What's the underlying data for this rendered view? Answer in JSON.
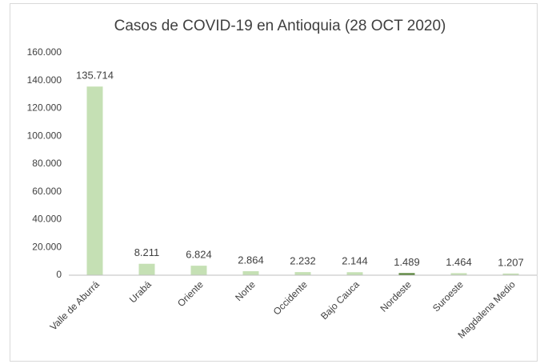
{
  "chart_data": {
    "type": "bar",
    "title": "Casos de COVID-19 en Antioquia (28 OCT 2020)",
    "categories": [
      "Valle de Aburrá",
      "Urabá",
      "Oriente",
      "Norte",
      "Occidente",
      "Bajo Cauca",
      "Nordeste",
      "Suroeste",
      "Magdalena Medio"
    ],
    "values": [
      135714,
      8211,
      6824,
      2864,
      2232,
      2144,
      1489,
      1464,
      1207
    ],
    "value_labels": [
      "135.714",
      "8.211",
      "6.824",
      "2.864",
      "2.232",
      "2.144",
      "1.489",
      "1.464",
      "1.207"
    ],
    "colors": [
      "#c5e0b4",
      "#c5e0b4",
      "#c5e0b4",
      "#c5e0b4",
      "#c5e0b4",
      "#c5e0b4",
      "#548235",
      "#c5e0b4",
      "#c5e0b4"
    ],
    "ylim": [
      0,
      160000
    ],
    "yticks": [
      0,
      {
        "value": 20000,
        "label": "20.000"
      },
      {
        "value": 40000,
        "label": "40.000"
      },
      {
        "value": 60000,
        "label": "60.000"
      },
      {
        "value": 80000,
        "label": "80.000"
      },
      {
        "value": 100000,
        "label": "100.000"
      },
      {
        "value": 120000,
        "label": "120.000"
      },
      {
        "value": 140000,
        "label": "140.000"
      },
      {
        "value": 160000,
        "label": "160.000"
      }
    ],
    "grid": false
  }
}
